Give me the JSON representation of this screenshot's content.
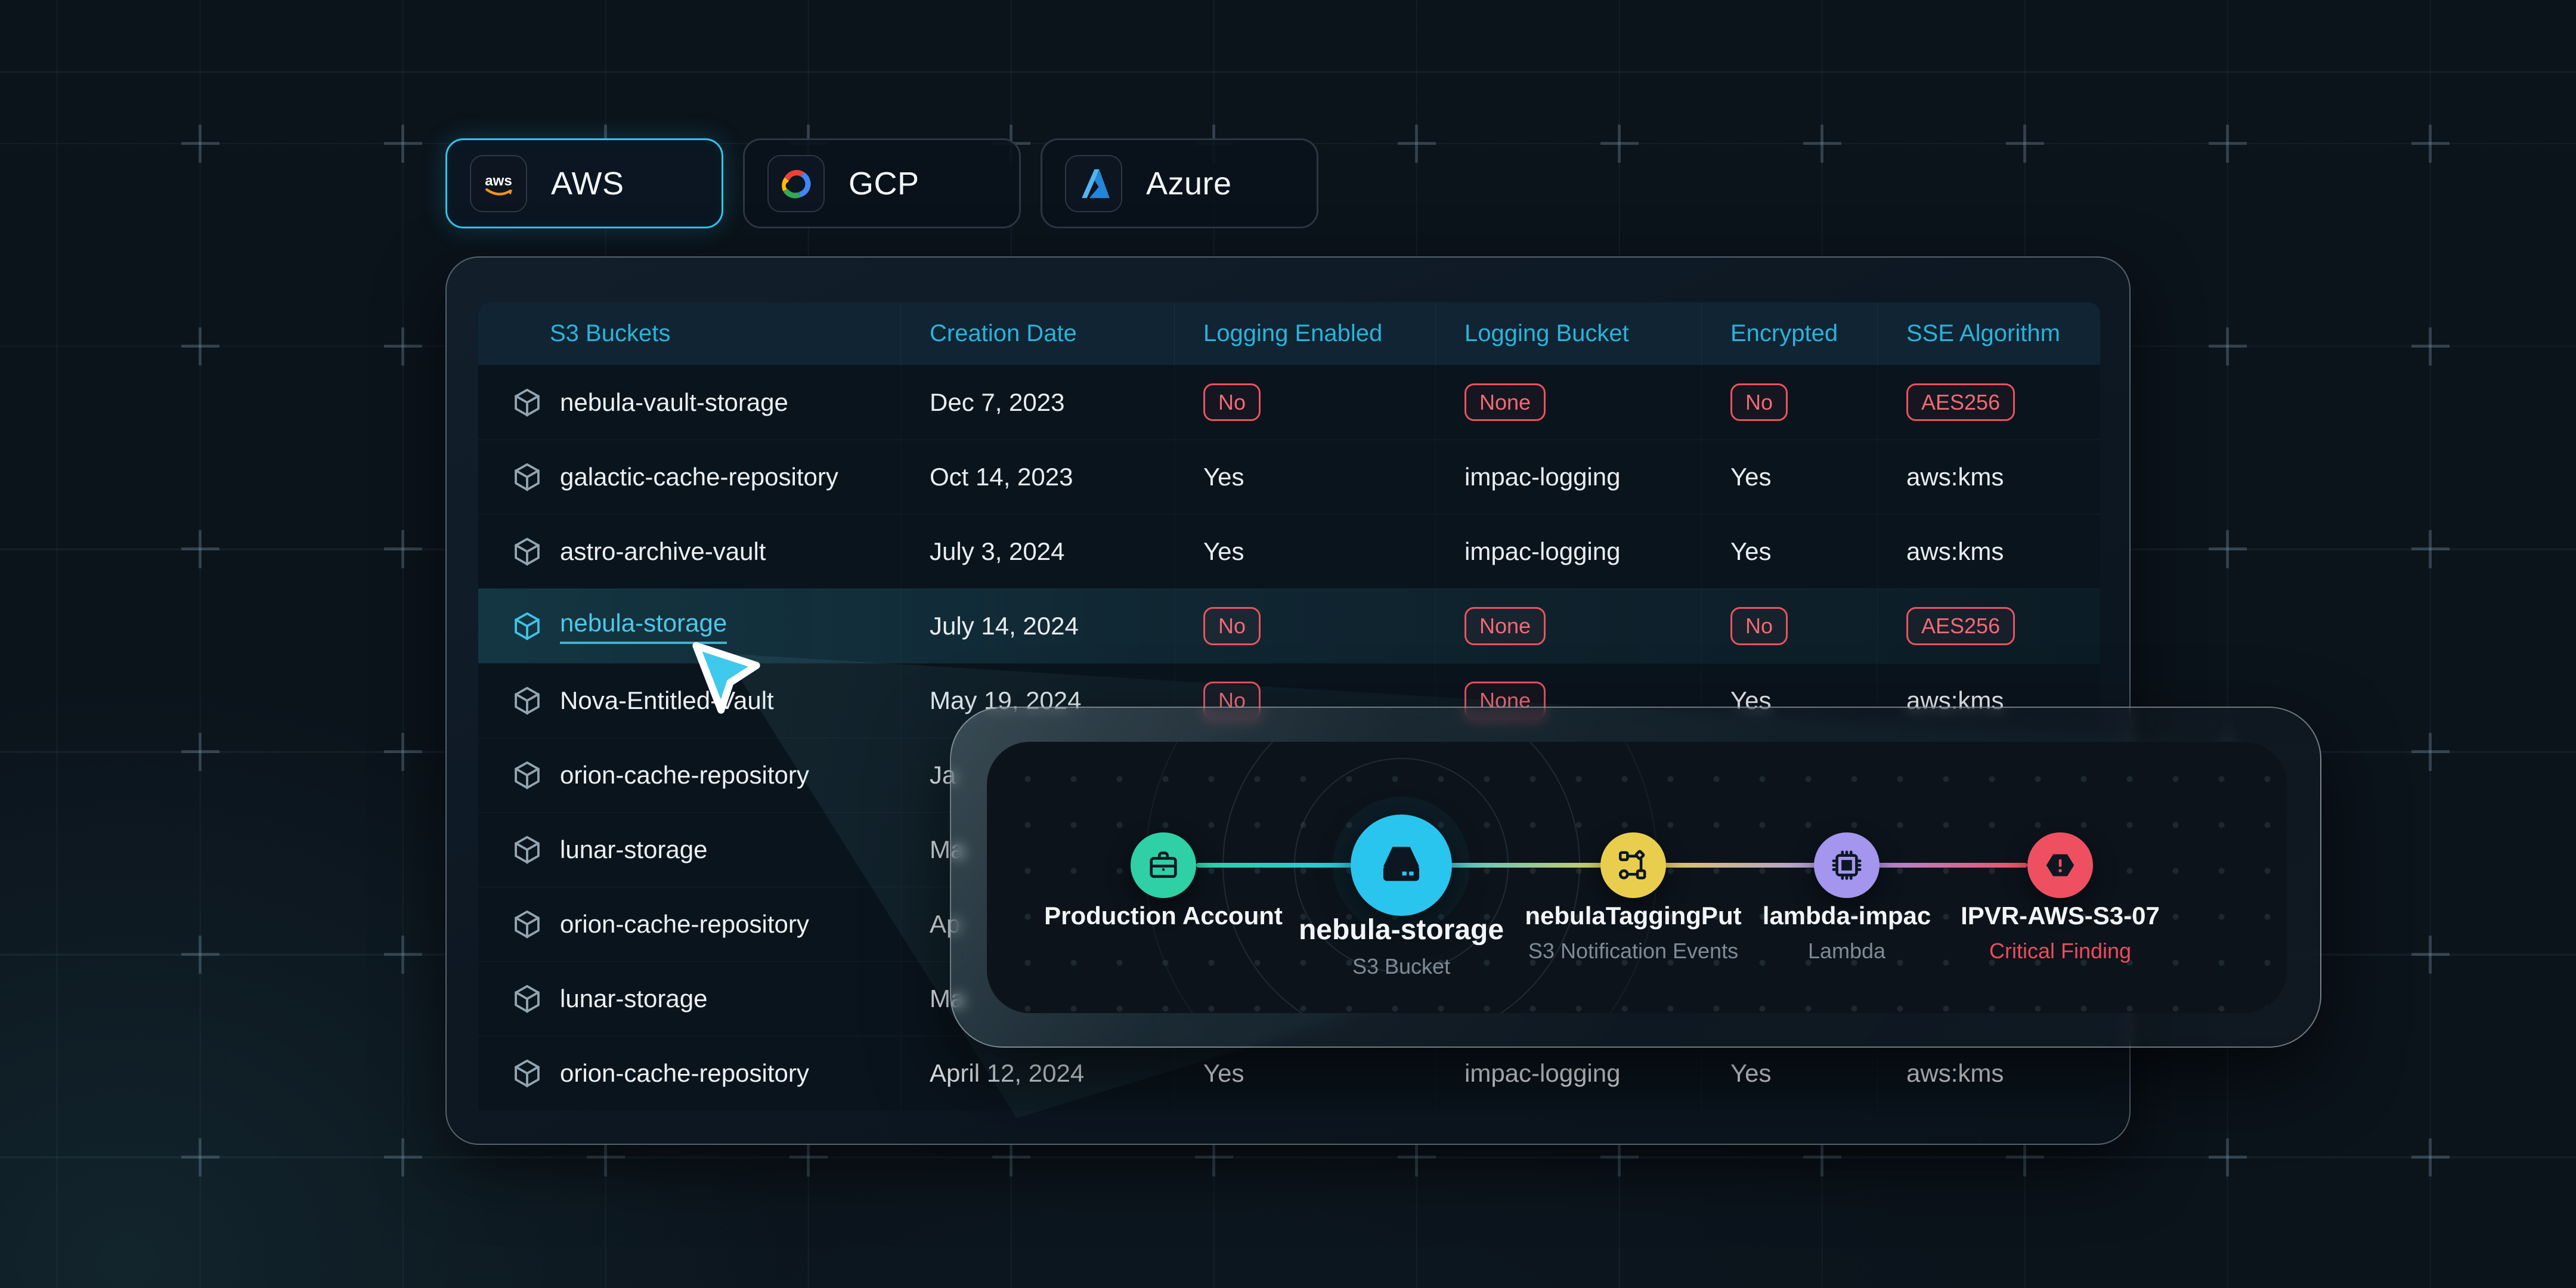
{
  "colors": {
    "page_background": "#0b131b",
    "accent_cyan": "#2bb3da",
    "selected_tab_border": "#30c6ea",
    "alert_red": "#ea5260",
    "highlight_row_teal": "#38acc8",
    "critical_text": "#ee4b5e"
  },
  "tabs": {
    "items": [
      {
        "label": "AWS",
        "icon": "aws-logo-icon",
        "selected": true
      },
      {
        "label": "GCP",
        "icon": "gcp-logo-icon",
        "selected": false
      },
      {
        "label": "Azure",
        "icon": "azure-logo-icon",
        "selected": false
      }
    ]
  },
  "table": {
    "columns": [
      "S3 Buckets",
      "Creation Date",
      "Logging Enabled",
      "Logging Bucket",
      "Encrypted",
      "SSE Algorithm"
    ],
    "rows": [
      {
        "name": "nebula-vault-storage",
        "date": "Dec 7, 2023",
        "highlighted": false,
        "values": [
          {
            "text": "No",
            "alert": true
          },
          {
            "text": "None",
            "alert": true
          },
          {
            "text": "No",
            "alert": true
          },
          {
            "text": "AES256",
            "alert": true
          }
        ]
      },
      {
        "name": "galactic-cache-repository",
        "date": "Oct 14, 2023",
        "highlighted": false,
        "values": [
          {
            "text": "Yes",
            "alert": false
          },
          {
            "text": "impac-logging",
            "alert": false
          },
          {
            "text": "Yes",
            "alert": false
          },
          {
            "text": "aws:kms",
            "alert": false
          }
        ]
      },
      {
        "name": "astro-archive-vault",
        "date": "July 3, 2024",
        "highlighted": false,
        "values": [
          {
            "text": "Yes",
            "alert": false
          },
          {
            "text": "impac-logging",
            "alert": false
          },
          {
            "text": "Yes",
            "alert": false
          },
          {
            "text": "aws:kms",
            "alert": false
          }
        ]
      },
      {
        "name": "nebula-storage",
        "date": "July 14, 2024",
        "highlighted": true,
        "values": [
          {
            "text": "No",
            "alert": true
          },
          {
            "text": "None",
            "alert": true
          },
          {
            "text": "No",
            "alert": true
          },
          {
            "text": "AES256",
            "alert": true
          }
        ]
      },
      {
        "name": "Nova-Entitled-Vault",
        "date": "May 19, 2024",
        "highlighted": false,
        "values": [
          {
            "text": "No",
            "alert": true
          },
          {
            "text": "None",
            "alert": true
          },
          {
            "text": "Yes",
            "alert": false
          },
          {
            "text": "aws:kms",
            "alert": false
          }
        ]
      },
      {
        "name": "orion-cache-repository",
        "date": "Ja",
        "highlighted": false,
        "values": []
      },
      {
        "name": "lunar-storage",
        "date": "Ma",
        "highlighted": false,
        "values": []
      },
      {
        "name": "orion-cache-repository",
        "date": "Ap",
        "highlighted": false,
        "values": []
      },
      {
        "name": "lunar-storage",
        "date": "Ma",
        "highlighted": false,
        "values": []
      },
      {
        "name": "orion-cache-repository",
        "date": "April 12, 2024",
        "highlighted": false,
        "values": [
          {
            "text": "Yes",
            "alert": false
          },
          {
            "text": "impac-logging",
            "alert": false
          },
          {
            "text": "Yes",
            "alert": false
          },
          {
            "text": "aws:kms",
            "alert": false
          }
        ]
      }
    ]
  },
  "overlay": {
    "nodes": [
      {
        "label": "Production Account",
        "sub": "",
        "color": "#2fd0a6",
        "icon": "briefcase-icon"
      },
      {
        "label": "nebula-storage",
        "sub": "S3 Bucket",
        "color": "#29c5ee",
        "icon": "storage-icon"
      },
      {
        "label": "nebulaTaggingPut",
        "sub": "S3 Notification Events",
        "color": "#e9ce4e",
        "icon": "workflow-icon"
      },
      {
        "label": "lambda-impac",
        "sub": "Lambda",
        "color": "#a495ee",
        "icon": "chip-icon"
      },
      {
        "label": "IPVR-AWS-S3-07",
        "sub": "Critical Finding",
        "color": "#ee5061",
        "icon": "alert-icon",
        "sub_color": "#ee4b5e"
      }
    ]
  },
  "cursor": {
    "icon": "pointer-cursor-icon"
  }
}
